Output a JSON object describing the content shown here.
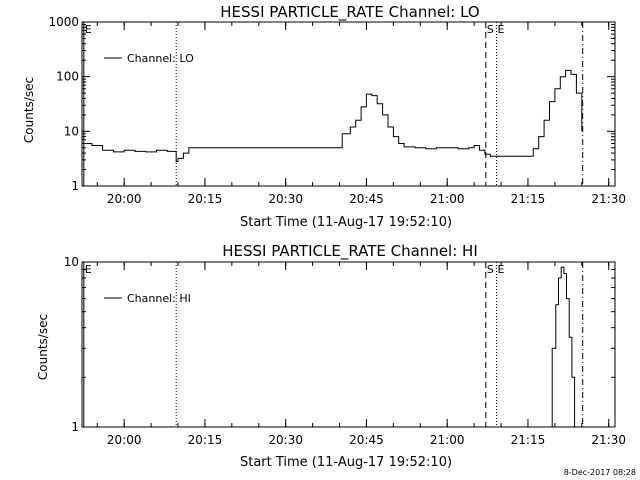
{
  "footer": {
    "timestamp": "8-Dec-2017 08:28"
  },
  "chart_data": [
    {
      "type": "line",
      "title": "HESSI PARTICLE_RATE Channel: LO",
      "xlabel": "Start Time (11-Aug-17 19:52:10)",
      "ylabel": "Counts/sec",
      "yscale": "log",
      "ylim": [
        1,
        1000
      ],
      "y_ticks": [
        1,
        10,
        100,
        1000
      ],
      "y_tick_labels": [
        "1",
        "10",
        "100",
        "1000"
      ],
      "x_ticks": [
        "20:00",
        "20:15",
        "20:30",
        "20:45",
        "21:00",
        "21:15",
        "21:30"
      ],
      "xlim": [
        "19:52:10",
        "21:31:10"
      ],
      "legend": {
        "placement": "top-left",
        "entries": [
          "Channel: LO"
        ]
      },
      "markers": [
        {
          "label": "E",
          "time": "19:52:30",
          "style": "solid"
        },
        {
          "label": "",
          "time": "20:09:40",
          "style": "dotted"
        },
        {
          "label": "S",
          "time": "21:07:10",
          "style": "dashed"
        },
        {
          "label": "E",
          "time": "21:09:10",
          "style": "dotted"
        },
        {
          "label": "",
          "time": "21:25:10",
          "style": "dash-dot"
        }
      ],
      "series": [
        {
          "name": "Channel: LO",
          "x": [
            "19:52:10",
            "19:54:00",
            "19:56:00",
            "19:58:00",
            "20:00:00",
            "20:02:00",
            "20:04:00",
            "20:06:00",
            "20:08:00",
            "20:09:40",
            "20:10:00",
            "20:11:00",
            "20:12:00",
            "20:15:00",
            "20:18:00",
            "20:21:00",
            "20:24:00",
            "20:27:00",
            "20:30:00",
            "20:33:00",
            "20:36:00",
            "20:39:00",
            "20:40:30",
            "20:42:00",
            "20:43:00",
            "20:44:00",
            "20:45:00",
            "20:46:00",
            "20:47:00",
            "20:48:00",
            "20:49:00",
            "20:50:00",
            "20:51:00",
            "20:52:00",
            "20:54:00",
            "20:56:00",
            "20:58:00",
            "21:00:00",
            "21:02:00",
            "21:04:00",
            "21:05:00",
            "21:06:00",
            "21:07:00",
            "21:08:00",
            "21:10:00",
            "21:12:00",
            "21:14:00",
            "21:15:00",
            "21:16:00",
            "21:17:00",
            "21:18:00",
            "21:19:00",
            "21:20:00",
            "21:21:00",
            "21:22:00",
            "21:23:00",
            "21:24:00",
            "21:25:00"
          ],
          "y": [
            6,
            5.5,
            4.5,
            4.2,
            4.5,
            4.3,
            4.2,
            4.5,
            4.3,
            2.8,
            3.2,
            4,
            5,
            5,
            5,
            5,
            5,
            5,
            5,
            5,
            5,
            5,
            9,
            12,
            16,
            28,
            48,
            45,
            32,
            20,
            12,
            8,
            6,
            5.2,
            5,
            4.8,
            5,
            5,
            4.8,
            5,
            5.5,
            4.5,
            3.8,
            3.5,
            3.5,
            3.5,
            3.5,
            3.5,
            4.8,
            8,
            16,
            35,
            60,
            100,
            130,
            110,
            50,
            10
          ]
        }
      ]
    },
    {
      "type": "line",
      "title": "HESSI PARTICLE_RATE Channel: HI",
      "xlabel": "Start Time (11-Aug-17 19:52:10)",
      "ylabel": "Counts/sec",
      "yscale": "log",
      "ylim": [
        1,
        10
      ],
      "y_ticks": [
        1,
        10
      ],
      "y_tick_labels": [
        "1",
        "10"
      ],
      "x_ticks": [
        "20:00",
        "20:15",
        "20:30",
        "20:45",
        "21:00",
        "21:15",
        "21:30"
      ],
      "xlim": [
        "19:52:10",
        "21:31:10"
      ],
      "legend": {
        "placement": "top-left",
        "entries": [
          "Channel: HI"
        ]
      },
      "markers": [
        {
          "label": "E",
          "time": "19:52:30",
          "style": "solid"
        },
        {
          "label": "",
          "time": "20:09:40",
          "style": "dotted"
        },
        {
          "label": "S",
          "time": "21:07:10",
          "style": "dashed"
        },
        {
          "label": "E",
          "time": "21:09:10",
          "style": "dotted"
        },
        {
          "label": "",
          "time": "21:25:10",
          "style": "dash-dot"
        }
      ],
      "series": [
        {
          "name": "Channel: HI",
          "x": [
            "21:18:50",
            "21:19:30",
            "21:20:10",
            "21:20:40",
            "21:21:10",
            "21:21:40",
            "21:22:10",
            "21:22:40",
            "21:23:10",
            "21:23:40"
          ],
          "y": [
            1,
            3,
            5.5,
            8,
            9.3,
            8.5,
            6,
            3.5,
            2,
            1
          ]
        }
      ]
    }
  ]
}
